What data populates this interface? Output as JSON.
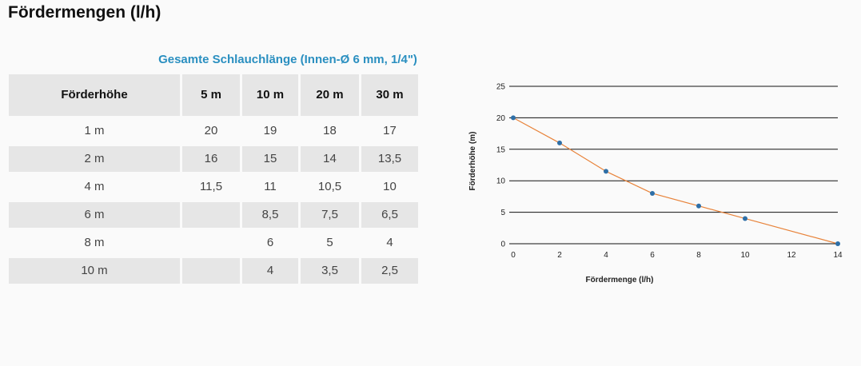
{
  "page": {
    "title": "Fördermengen (l/h)"
  },
  "table": {
    "caption": "Gesamte Schlauchlänge (Innen-Ø 6 mm, 1/4\")",
    "headers": [
      "Förderhöhe",
      "5 m",
      "10 m",
      "20 m",
      "30 m"
    ],
    "rows": [
      [
        "1 m",
        "20",
        "19",
        "18",
        "17"
      ],
      [
        "2 m",
        "16",
        "15",
        "14",
        "13,5"
      ],
      [
        "4 m",
        "11,5",
        "11",
        "10,5",
        "10"
      ],
      [
        "6 m",
        "",
        "8,5",
        "7,5",
        "6,5"
      ],
      [
        "8 m",
        "",
        "6",
        "5",
        "4"
      ],
      [
        "10 m",
        "",
        "4",
        "3,5",
        "2,5"
      ]
    ]
  },
  "chart_data": {
    "type": "line",
    "xlabel": "Fördermenge (l/h)",
    "ylabel": "Förderhöhe  (m)",
    "xlim": [
      0,
      14
    ],
    "ylim": [
      0,
      25
    ],
    "xticks": [
      0,
      2,
      4,
      6,
      8,
      10,
      12,
      14
    ],
    "yticks": [
      0,
      5,
      10,
      15,
      20,
      25
    ],
    "grid": "horizontal",
    "line_color": "#e8833a",
    "point_color": "#2e6fa7",
    "series": [
      {
        "x": [
          0,
          2,
          4,
          6,
          8,
          10,
          14
        ],
        "y": [
          20,
          16,
          11.5,
          8,
          6,
          4,
          0
        ]
      }
    ]
  }
}
